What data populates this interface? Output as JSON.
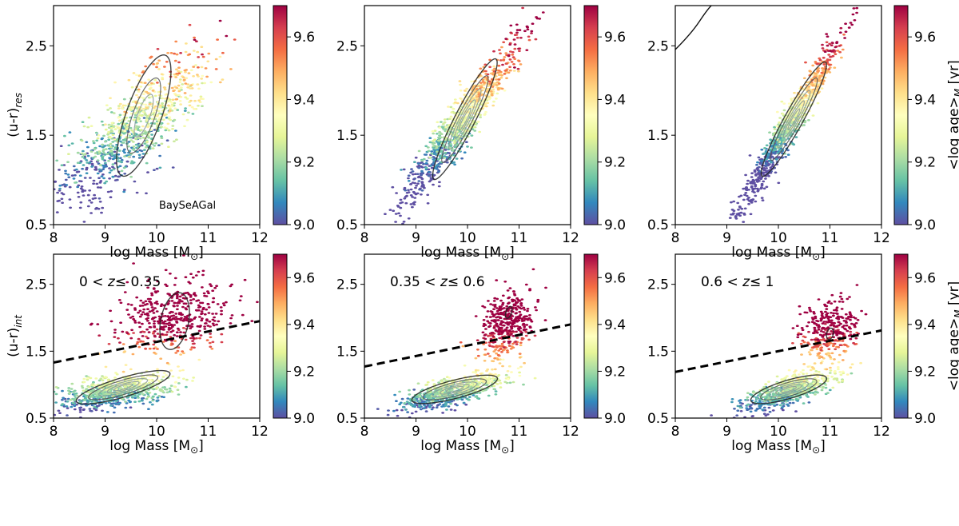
{
  "chart_data": {
    "type": "scatter",
    "layout": "2x3 grid of colour-coded scatter panels with density contours",
    "colormap": {
      "name": "Spectral_r",
      "label_html": "<log age>_M [yr]",
      "label_parts": [
        "<log age>",
        "M",
        " [yr]"
      ],
      "range": [
        9.0,
        9.7
      ],
      "ticks": [
        9.0,
        9.2,
        9.4,
        9.6
      ],
      "tick_labels": [
        "9.0",
        "9.2",
        "9.4",
        "9.6"
      ],
      "stops": [
        "#5e4fa2",
        "#3288bd",
        "#66c2a5",
        "#abdda4",
        "#e6f598",
        "#ffffbf",
        "#fee08b",
        "#fdae61",
        "#f46d43",
        "#d53e4f",
        "#9e0142"
      ]
    },
    "contour_color": "#222222",
    "x_axis": {
      "label": "log Mass [M",
      "label_sub": "⊙",
      "label_end": "]",
      "range": [
        8,
        12
      ],
      "ticks": [
        8,
        9,
        10,
        11,
        12
      ],
      "tick_labels": [
        "8",
        "9",
        "10",
        "11",
        "12"
      ]
    },
    "y_axis": {
      "range": [
        0.5,
        2.95
      ],
      "ticks": [
        0.5,
        1.5,
        2.5
      ],
      "tick_labels": [
        "0.5",
        "1.5",
        "2.5"
      ]
    },
    "panels": [
      {
        "id": "top-left",
        "row": 0,
        "col": 0,
        "ylabel": "(u-r)",
        "ylabel_sub": "res",
        "annotation": "BaySeAGal",
        "show_cbar_label": false,
        "scatter": {
          "x_center": 9.6,
          "x_sd": 0.75,
          "slope": 0.47,
          "x0": 9.5,
          "y0": 1.55,
          "scatter": 0.25,
          "n": 950,
          "age_slope": 0.38,
          "age_x0": 9.5,
          "age_y0": 9.2,
          "age_noise": 0.08
        },
        "contours": {
          "cx": 9.75,
          "cy": 1.72,
          "angle_deg": 62,
          "a": 1.05,
          "b": 0.36,
          "levels": [
            1.0,
            0.62,
            0.35
          ]
        },
        "line": null
      },
      {
        "id": "top-mid",
        "row": 0,
        "col": 1,
        "ylabel": "",
        "ylabel_sub": "",
        "annotation": "",
        "show_cbar_label": false,
        "scatter": {
          "x_center": 9.9,
          "x_sd": 0.55,
          "slope": 0.75,
          "x0": 9.8,
          "y0": 1.58,
          "scatter": 0.15,
          "n": 1000,
          "age_slope": 0.45,
          "age_x0": 9.8,
          "age_y0": 9.22,
          "age_noise": 0.06
        },
        "contours": {
          "cx": 9.95,
          "cy": 1.68,
          "angle_deg": 54,
          "a": 1.15,
          "b": 0.2,
          "levels": [
            1.0,
            0.72,
            0.5,
            0.32,
            0.18
          ]
        },
        "line": null
      },
      {
        "id": "top-right",
        "row": 0,
        "col": 2,
        "ylabel": "",
        "ylabel_sub": "",
        "annotation": "",
        "show_cbar_label": true,
        "scatter": {
          "x_center": 10.2,
          "x_sd": 0.5,
          "slope": 0.95,
          "x0": 10.2,
          "y0": 1.6,
          "scatter": 0.12,
          "n": 950,
          "age_slope": 0.5,
          "age_x0": 10.2,
          "age_y0": 9.2,
          "age_noise": 0.05
        },
        "contours": {
          "cx": 10.3,
          "cy": 1.68,
          "angle_deg": 52,
          "a": 1.12,
          "b": 0.18,
          "levels": [
            1.0,
            0.72,
            0.5,
            0.32,
            0.18
          ]
        },
        "line": null
      },
      {
        "id": "bottom-left",
        "row": 1,
        "col": 0,
        "ylabel": "(u-r)",
        "ylabel_sub": "int",
        "annotation": "0 <z≤ 0.35",
        "annotation_parts": [
          "0 <",
          "z",
          "≤ 0.35"
        ],
        "show_cbar_label": false,
        "scatter": {
          "blue_frac": 0.62,
          "blue": {
            "x_center": 9.2,
            "x_sd": 0.55,
            "slope": 0.12,
            "x0": 9.2,
            "y0": 0.9,
            "scatter": 0.12
          },
          "red": {
            "x_center": 10.3,
            "x_sd": 0.55,
            "slope": 0.1,
            "x0": 10.3,
            "y0": 2.0,
            "scatter": 0.27
          },
          "n": 1150
        },
        "contours": {
          "cx": 9.35,
          "cy": 0.96,
          "angle_deg": 16,
          "a": 1.05,
          "b": 0.2,
          "levels": [
            1.0,
            0.74,
            0.52,
            0.34,
            0.2
          ],
          "extra": {
            "cx": 10.35,
            "cy": 1.95,
            "angle_deg": 78,
            "a": 0.6,
            "b": 0.3
          }
        },
        "line": {
          "x": [
            8,
            12
          ],
          "y": [
            1.33,
            1.95
          ],
          "style": "dashed"
        }
      },
      {
        "id": "bottom-mid",
        "row": 1,
        "col": 1,
        "ylabel": "",
        "ylabel_sub": "",
        "annotation": "0.35 <z≤ 0.6",
        "annotation_parts": [
          "0.35 <",
          "z",
          "≤ 0.6"
        ],
        "show_cbar_label": false,
        "scatter": {
          "blue_frac": 0.64,
          "blue": {
            "x_center": 9.7,
            "x_sd": 0.5,
            "slope": 0.2,
            "x0": 9.7,
            "y0": 0.9,
            "scatter": 0.1
          },
          "red": {
            "x_center": 10.75,
            "x_sd": 0.25,
            "slope": 0.2,
            "x0": 10.75,
            "y0": 1.9,
            "scatter": 0.25
          },
          "n": 1100
        },
        "contours": {
          "cx": 9.75,
          "cy": 0.93,
          "angle_deg": 14,
          "a": 0.95,
          "b": 0.19,
          "levels": [
            1.0,
            0.74,
            0.52,
            0.34,
            0.2
          ],
          "extra": {
            "cx": 10.8,
            "cy": 2.08,
            "angle_deg": 70,
            "a": 0.13,
            "b": 0.06
          }
        },
        "line": {
          "x": [
            8,
            12
          ],
          "y": [
            1.27,
            1.9
          ],
          "style": "dashed"
        }
      },
      {
        "id": "bottom-right",
        "row": 1,
        "col": 2,
        "ylabel": "",
        "ylabel_sub": "",
        "annotation": "0.6 <z≤ 1",
        "annotation_parts": [
          "0.6 <",
          "z",
          "≤ 1"
        ],
        "show_cbar_label": true,
        "scatter": {
          "blue_frac": 0.64,
          "blue": {
            "x_center": 10.2,
            "x_sd": 0.45,
            "slope": 0.25,
            "x0": 10.2,
            "y0": 0.9,
            "scatter": 0.1
          },
          "red": {
            "x_center": 11.0,
            "x_sd": 0.28,
            "slope": 0.2,
            "x0": 11.0,
            "y0": 1.8,
            "scatter": 0.22
          },
          "n": 1000
        },
        "contours": {
          "cx": 10.2,
          "cy": 0.93,
          "angle_deg": 16,
          "a": 0.85,
          "b": 0.19,
          "levels": [
            1.0,
            0.74,
            0.52,
            0.34,
            0.2
          ],
          "extra": {
            "cx": 11.0,
            "cy": 1.76,
            "angle_deg": 75,
            "a": 0.12,
            "b": 0.07
          }
        },
        "line": {
          "x": [
            8,
            12
          ],
          "y": [
            1.19,
            1.81
          ],
          "style": "dashed"
        }
      }
    ]
  }
}
